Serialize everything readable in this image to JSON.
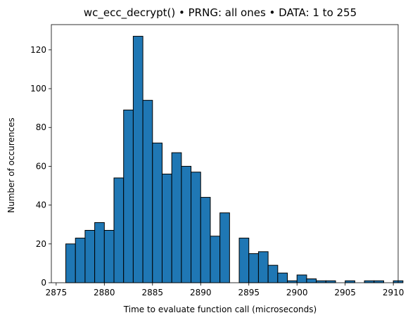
{
  "chart_data": {
    "type": "bar",
    "title": "wc_ecc_decrypt() • PRNG: all ones • DATA: 1 to 255",
    "xlabel": "Time to evaluate function call (microseconds)",
    "ylabel": "Number of occurences",
    "xlim": [
      2874.5,
      2910.5
    ],
    "ylim": [
      0,
      133
    ],
    "xticks": [
      2875,
      2880,
      2885,
      2890,
      2895,
      2900,
      2905,
      2910
    ],
    "yticks": [
      0,
      20,
      40,
      60,
      80,
      100,
      120
    ],
    "grid": false,
    "bar_color": "#1f77b4",
    "edge_color": "#000000",
    "bins": [
      {
        "x0": 2876.0,
        "x1": 2877.0,
        "value": 20
      },
      {
        "x0": 2877.0,
        "x1": 2878.0,
        "value": 23
      },
      {
        "x0": 2878.0,
        "x1": 2879.0,
        "value": 27
      },
      {
        "x0": 2879.0,
        "x1": 2880.0,
        "value": 31
      },
      {
        "x0": 2880.0,
        "x1": 2881.0,
        "value": 27
      },
      {
        "x0": 2881.0,
        "x1": 2882.0,
        "value": 54
      },
      {
        "x0": 2882.0,
        "x1": 2883.0,
        "value": 89
      },
      {
        "x0": 2883.0,
        "x1": 2884.0,
        "value": 127
      },
      {
        "x0": 2884.0,
        "x1": 2885.0,
        "value": 94
      },
      {
        "x0": 2885.0,
        "x1": 2886.0,
        "value": 72
      },
      {
        "x0": 2886.0,
        "x1": 2887.0,
        "value": 56
      },
      {
        "x0": 2887.0,
        "x1": 2888.0,
        "value": 67
      },
      {
        "x0": 2888.0,
        "x1": 2889.0,
        "value": 60
      },
      {
        "x0": 2889.0,
        "x1": 2890.0,
        "value": 57
      },
      {
        "x0": 2890.0,
        "x1": 2891.0,
        "value": 44
      },
      {
        "x0": 2891.0,
        "x1": 2892.0,
        "value": 24
      },
      {
        "x0": 2892.0,
        "x1": 2893.0,
        "value": 36
      },
      {
        "x0": 2893.0,
        "x1": 2894.0,
        "value": 0
      },
      {
        "x0": 2894.0,
        "x1": 2895.0,
        "value": 23
      },
      {
        "x0": 2895.0,
        "x1": 2896.0,
        "value": 15
      },
      {
        "x0": 2896.0,
        "x1": 2897.0,
        "value": 16
      },
      {
        "x0": 2897.0,
        "x1": 2898.0,
        "value": 9
      },
      {
        "x0": 2898.0,
        "x1": 2899.0,
        "value": 5
      },
      {
        "x0": 2899.0,
        "x1": 2900.0,
        "value": 1
      },
      {
        "x0": 2900.0,
        "x1": 2901.0,
        "value": 4
      },
      {
        "x0": 2901.0,
        "x1": 2902.0,
        "value": 2
      },
      {
        "x0": 2902.0,
        "x1": 2903.0,
        "value": 1
      },
      {
        "x0": 2903.0,
        "x1": 2904.0,
        "value": 1
      },
      {
        "x0": 2904.0,
        "x1": 2905.0,
        "value": 0
      },
      {
        "x0": 2905.0,
        "x1": 2906.0,
        "value": 1
      },
      {
        "x0": 2906.0,
        "x1": 2907.0,
        "value": 0
      },
      {
        "x0": 2907.0,
        "x1": 2908.0,
        "value": 1
      },
      {
        "x0": 2908.0,
        "x1": 2909.0,
        "value": 1
      },
      {
        "x0": 2909.0,
        "x1": 2910.0,
        "value": 0
      },
      {
        "x0": 2910.0,
        "x1": 2911.0,
        "value": 1
      }
    ]
  }
}
